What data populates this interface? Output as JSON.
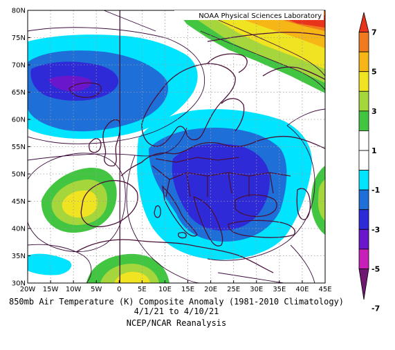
{
  "watermark": "NOAA Physical Sciences Laboratory",
  "caption": {
    "line1": "850mb Air Temperature (K) Composite Anomaly (1981-2010 Climatology)",
    "line2": "4/1/21  to 4/10/21",
    "line3": "NCEP/NCAR Reanalysis"
  },
  "lat_labels": [
    "30N",
    "35N",
    "40N",
    "45N",
    "50N",
    "55N",
    "60N",
    "65N",
    "70N",
    "75N",
    "80N"
  ],
  "lon_labels": [
    "20W",
    "15W",
    "10W",
    "5W",
    "0",
    "5E",
    "10E",
    "15E",
    "20E",
    "25E",
    "30E",
    "35E",
    "40E",
    "45E"
  ],
  "colorbar": {
    "labels": [
      "7",
      "5",
      "3",
      "1",
      "-1",
      "-3",
      "-5",
      "-7"
    ],
    "colors": [
      "#e8341b",
      "#f07a1e",
      "#f6b616",
      "#efe322",
      "#a5d63c",
      "#42c642",
      "#ffffff",
      "#ffffff",
      "#00e4ff",
      "#1e70d8",
      "#2f2ad8",
      "#6a17cc",
      "#c81fb8",
      "#6e1872"
    ]
  },
  "colors": {
    "c_deep_purple": "#6a17cc",
    "c_indigo": "#2f2ad8",
    "c_blue": "#1e70d8",
    "c_cyan": "#00e4ff",
    "c_green": "#42c642",
    "c_lime": "#a5d63c",
    "c_yellow": "#efe322",
    "c_orange": "#f6b616",
    "c_dark_orange": "#f07a1e",
    "c_red": "#e8341b",
    "coast": "#4a1038"
  }
}
